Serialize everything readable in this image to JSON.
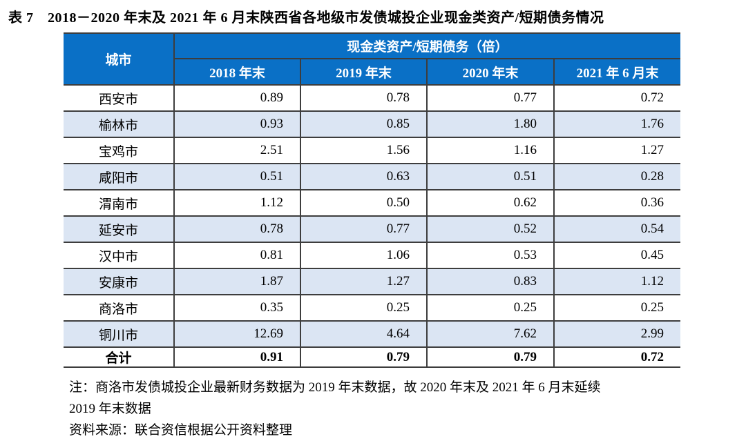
{
  "title": "表 7　2018－2020 年末及 2021 年 6 月末陕西省各地级市发债城投企业现金类资产/短期债务情况",
  "table": {
    "header": {
      "city": "城市",
      "group": "现金类资产/短期债务（倍）",
      "periods": [
        "2018 年末",
        "2019 年末",
        "2020 年末",
        "2021 年 6 月末"
      ]
    },
    "rows": [
      {
        "city": "西安市",
        "values": [
          "0.89",
          "0.78",
          "0.77",
          "0.72"
        ]
      },
      {
        "city": "榆林市",
        "values": [
          "0.93",
          "0.85",
          "1.80",
          "1.76"
        ]
      },
      {
        "city": "宝鸡市",
        "values": [
          "2.51",
          "1.56",
          "1.16",
          "1.27"
        ]
      },
      {
        "city": "咸阳市",
        "values": [
          "0.51",
          "0.63",
          "0.51",
          "0.28"
        ]
      },
      {
        "city": "渭南市",
        "values": [
          "1.12",
          "0.50",
          "0.62",
          "0.36"
        ]
      },
      {
        "city": "延安市",
        "values": [
          "0.78",
          "0.77",
          "0.52",
          "0.54"
        ]
      },
      {
        "city": "汉中市",
        "values": [
          "0.81",
          "1.06",
          "0.53",
          "0.45"
        ]
      },
      {
        "city": "安康市",
        "values": [
          "1.87",
          "1.27",
          "0.83",
          "1.12"
        ]
      },
      {
        "city": "商洛市",
        "values": [
          "0.35",
          "0.25",
          "0.25",
          "0.25"
        ]
      },
      {
        "city": "铜川市",
        "values": [
          "12.69",
          "4.64",
          "7.62",
          "2.99"
        ]
      }
    ],
    "total_row": {
      "city": "合计",
      "values": [
        "0.91",
        "0.79",
        "0.79",
        "0.72"
      ]
    }
  },
  "notes": {
    "note_line1": "注：商洛市发债城投企业最新财务数据为 2019 年末数据，故 2020 年末及 2021 年 6 月末延续",
    "note_line2": "2019 年末数据",
    "source": "资料来源：联合资信根据公开资料整理"
  },
  "colors": {
    "header_bg": "#0a70c6",
    "header_text": "#ffffff",
    "alt_row_bg": "#dbe5f3",
    "border": "#3d3d3d",
    "body_text": "#000000",
    "background": "#ffffff"
  }
}
